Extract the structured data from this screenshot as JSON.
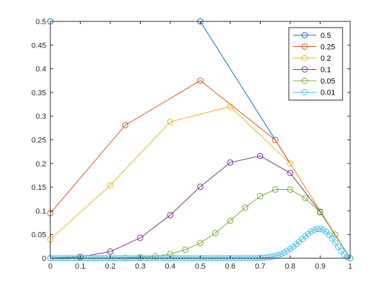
{
  "chart_data": {
    "type": "line",
    "xlim": [
      0,
      1
    ],
    "ylim": [
      0,
      0.5
    ],
    "xticks": [
      "0",
      "0.1",
      "0.2",
      "0.3",
      "0.4",
      "0.5",
      "0.6",
      "0.7",
      "0.8",
      "0.9",
      "1"
    ],
    "yticks": [
      "0",
      "0.05",
      "0.1",
      "0.15",
      "0.2",
      "0.25",
      "0.3",
      "0.35",
      "0.4",
      "0.45",
      "0.5"
    ],
    "grid": false,
    "legend_position": "top-right",
    "series": [
      {
        "name": "0.5",
        "color": "#0072BD",
        "x": [
          0,
          0.5,
          1
        ],
        "y": [
          0.5,
          0.5,
          0
        ]
      },
      {
        "name": "0.25",
        "color": "#D95319",
        "x": [
          0,
          0.25,
          0.5,
          0.75,
          1
        ],
        "y": [
          0.095,
          0.281,
          0.375,
          0.25,
          0
        ]
      },
      {
        "name": "0.2",
        "color": "#EDB120",
        "x": [
          0,
          0.2,
          0.4,
          0.6,
          0.8,
          1
        ],
        "y": [
          0.04,
          0.154,
          0.288,
          0.32,
          0.2,
          0
        ]
      },
      {
        "name": "0.1",
        "color": "#7E2F8E",
        "x": [
          0,
          0.1,
          0.2,
          0.3,
          0.4,
          0.5,
          0.6,
          0.7,
          0.8,
          0.9,
          1
        ],
        "y": [
          0.0,
          0.003,
          0.014,
          0.043,
          0.091,
          0.151,
          0.202,
          0.216,
          0.18,
          0.098,
          0
        ]
      },
      {
        "name": "0.05",
        "color": "#77AC30",
        "x": [
          0,
          0.05,
          0.1,
          0.15,
          0.2,
          0.25,
          0.3,
          0.35,
          0.4,
          0.45,
          0.5,
          0.55,
          0.6,
          0.65,
          0.7,
          0.75,
          0.8,
          0.85,
          0.9,
          0.95,
          1
        ],
        "y": [
          0,
          0,
          0,
          0.0001,
          0.0002,
          0.0007,
          0.002,
          0.004,
          0.009,
          0.018,
          0.032,
          0.053,
          0.079,
          0.107,
          0.131,
          0.145,
          0.145,
          0.127,
          0.097,
          0.05,
          0
        ]
      },
      {
        "name": "0.01",
        "color": "#4DBEEE",
        "x": [
          0,
          0.01,
          0.02,
          0.03,
          0.04,
          0.05,
          0.06,
          0.07,
          0.08,
          0.09,
          0.1,
          0.11,
          0.12,
          0.13,
          0.14,
          0.15,
          0.16,
          0.17,
          0.18,
          0.19,
          0.2,
          0.21,
          0.22,
          0.23,
          0.24,
          0.25,
          0.26,
          0.27,
          0.28,
          0.29,
          0.3,
          0.31,
          0.32,
          0.33,
          0.34,
          0.35,
          0.36,
          0.37,
          0.38,
          0.39,
          0.4,
          0.41,
          0.42,
          0.43,
          0.44,
          0.45,
          0.46,
          0.47,
          0.48,
          0.49,
          0.5,
          0.51,
          0.52,
          0.53,
          0.54,
          0.55,
          0.56,
          0.57,
          0.58,
          0.59,
          0.6,
          0.61,
          0.62,
          0.63,
          0.64,
          0.65,
          0.66,
          0.67,
          0.68,
          0.69,
          0.7,
          0.71,
          0.72,
          0.73,
          0.74,
          0.75,
          0.76,
          0.77,
          0.78,
          0.79,
          0.8,
          0.81,
          0.82,
          0.83,
          0.84,
          0.85,
          0.86,
          0.87,
          0.88,
          0.89,
          0.9,
          0.91,
          0.92,
          0.93,
          0.94,
          0.95,
          0.96,
          0.97,
          0.98,
          0.99,
          1
        ],
        "y": [
          0,
          0,
          0,
          0,
          0,
          0,
          0,
          0,
          0,
          0,
          0,
          0,
          0,
          0,
          0,
          0,
          0,
          0,
          0,
          0,
          0,
          0,
          0,
          0,
          0,
          0,
          0,
          0,
          0,
          0,
          0,
          0,
          0,
          0,
          0,
          0,
          0,
          0,
          0,
          0,
          0,
          0,
          0,
          0,
          0,
          0,
          0,
          0,
          0,
          0,
          0,
          0,
          0,
          0,
          0,
          0,
          0,
          0,
          0,
          0,
          0,
          0,
          0,
          0,
          0,
          0,
          0,
          0,
          0.0001,
          0.0003,
          0.0005,
          0.001,
          0.0015,
          0.0022,
          0.0033,
          0.0048,
          0.0066,
          0.009,
          0.012,
          0.0155,
          0.0196,
          0.0243,
          0.0294,
          0.035,
          0.0407,
          0.0464,
          0.0517,
          0.0563,
          0.0597,
          0.0617,
          0.0618,
          0.0598,
          0.0556,
          0.0495,
          0.0418,
          0.033,
          0.024,
          0.0154,
          0.0081,
          0.0029,
          0
        ]
      }
    ]
  }
}
